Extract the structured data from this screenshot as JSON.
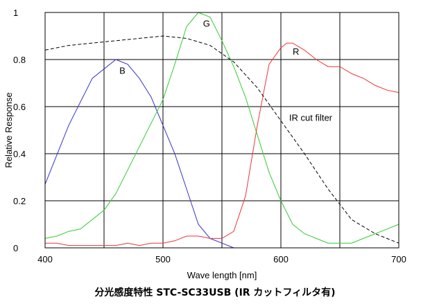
{
  "caption": "分光感度特性  STC-SC33USB (IR カットフィルタ有)",
  "chart_data": {
    "type": "line",
    "xlabel": "Wave length [nm]",
    "ylabel": "Relative Response",
    "xlim": [
      400,
      700
    ],
    "ylim": [
      0,
      1
    ],
    "xticks": [
      400,
      500,
      600,
      700
    ],
    "yticks": [
      0,
      0.2,
      0.4,
      0.6,
      0.8,
      1
    ],
    "ytick_labels": [
      "0",
      "0.2",
      "0.4",
      "0.6",
      "0.8",
      "1"
    ],
    "grid": true,
    "series": [
      {
        "name": "B",
        "color": "#3333cc",
        "dash": "solid",
        "x": [
          400,
          420,
          440,
          460,
          470,
          480,
          490,
          500,
          510,
          520,
          530,
          540,
          550,
          560
        ],
        "y": [
          0.27,
          0.52,
          0.72,
          0.8,
          0.78,
          0.72,
          0.64,
          0.52,
          0.4,
          0.25,
          0.1,
          0.04,
          0.02,
          0.0
        ]
      },
      {
        "name": "G",
        "color": "#33cc33",
        "dash": "solid",
        "x": [
          400,
          410,
          420,
          430,
          440,
          450,
          460,
          470,
          480,
          490,
          500,
          510,
          520,
          530,
          540,
          550,
          560,
          570,
          580,
          590,
          600,
          610,
          620,
          630,
          640,
          650,
          660,
          670,
          680,
          690,
          700
        ],
        "y": [
          0.04,
          0.05,
          0.07,
          0.08,
          0.12,
          0.16,
          0.23,
          0.33,
          0.43,
          0.53,
          0.63,
          0.78,
          0.94,
          1.0,
          0.98,
          0.88,
          0.77,
          0.64,
          0.48,
          0.32,
          0.2,
          0.1,
          0.06,
          0.04,
          0.02,
          0.02,
          0.02,
          0.04,
          0.06,
          0.08,
          0.1
        ]
      },
      {
        "name": "R",
        "color": "#ee3333",
        "dash": "solid",
        "x": [
          400,
          410,
          420,
          430,
          440,
          450,
          460,
          470,
          480,
          490,
          500,
          510,
          520,
          530,
          540,
          550,
          560,
          570,
          580,
          590,
          600,
          605,
          610,
          620,
          630,
          640,
          650,
          660,
          670,
          680,
          690,
          700
        ],
        "y": [
          0.02,
          0.02,
          0.01,
          0.01,
          0.01,
          0.01,
          0.01,
          0.02,
          0.01,
          0.02,
          0.02,
          0.03,
          0.05,
          0.05,
          0.04,
          0.04,
          0.07,
          0.22,
          0.52,
          0.78,
          0.85,
          0.87,
          0.87,
          0.84,
          0.8,
          0.77,
          0.77,
          0.74,
          0.72,
          0.69,
          0.67,
          0.66
        ]
      },
      {
        "name": "IR cut filter",
        "color": "#000000",
        "dash": "dashed",
        "x": [
          400,
          420,
          440,
          460,
          480,
          500,
          520,
          540,
          560,
          580,
          600,
          620,
          640,
          660,
          680,
          700
        ],
        "y": [
          0.84,
          0.86,
          0.87,
          0.88,
          0.89,
          0.9,
          0.89,
          0.86,
          0.79,
          0.68,
          0.54,
          0.4,
          0.25,
          0.12,
          0.06,
          0.02
        ]
      }
    ],
    "annotations": [
      {
        "text": "B",
        "x": 463,
        "y": 0.74
      },
      {
        "text": "G",
        "x": 534,
        "y": 0.94
      },
      {
        "text": "R",
        "x": 610,
        "y": 0.82
      },
      {
        "text": "IR cut filter",
        "x": 607,
        "y": 0.54
      }
    ]
  }
}
